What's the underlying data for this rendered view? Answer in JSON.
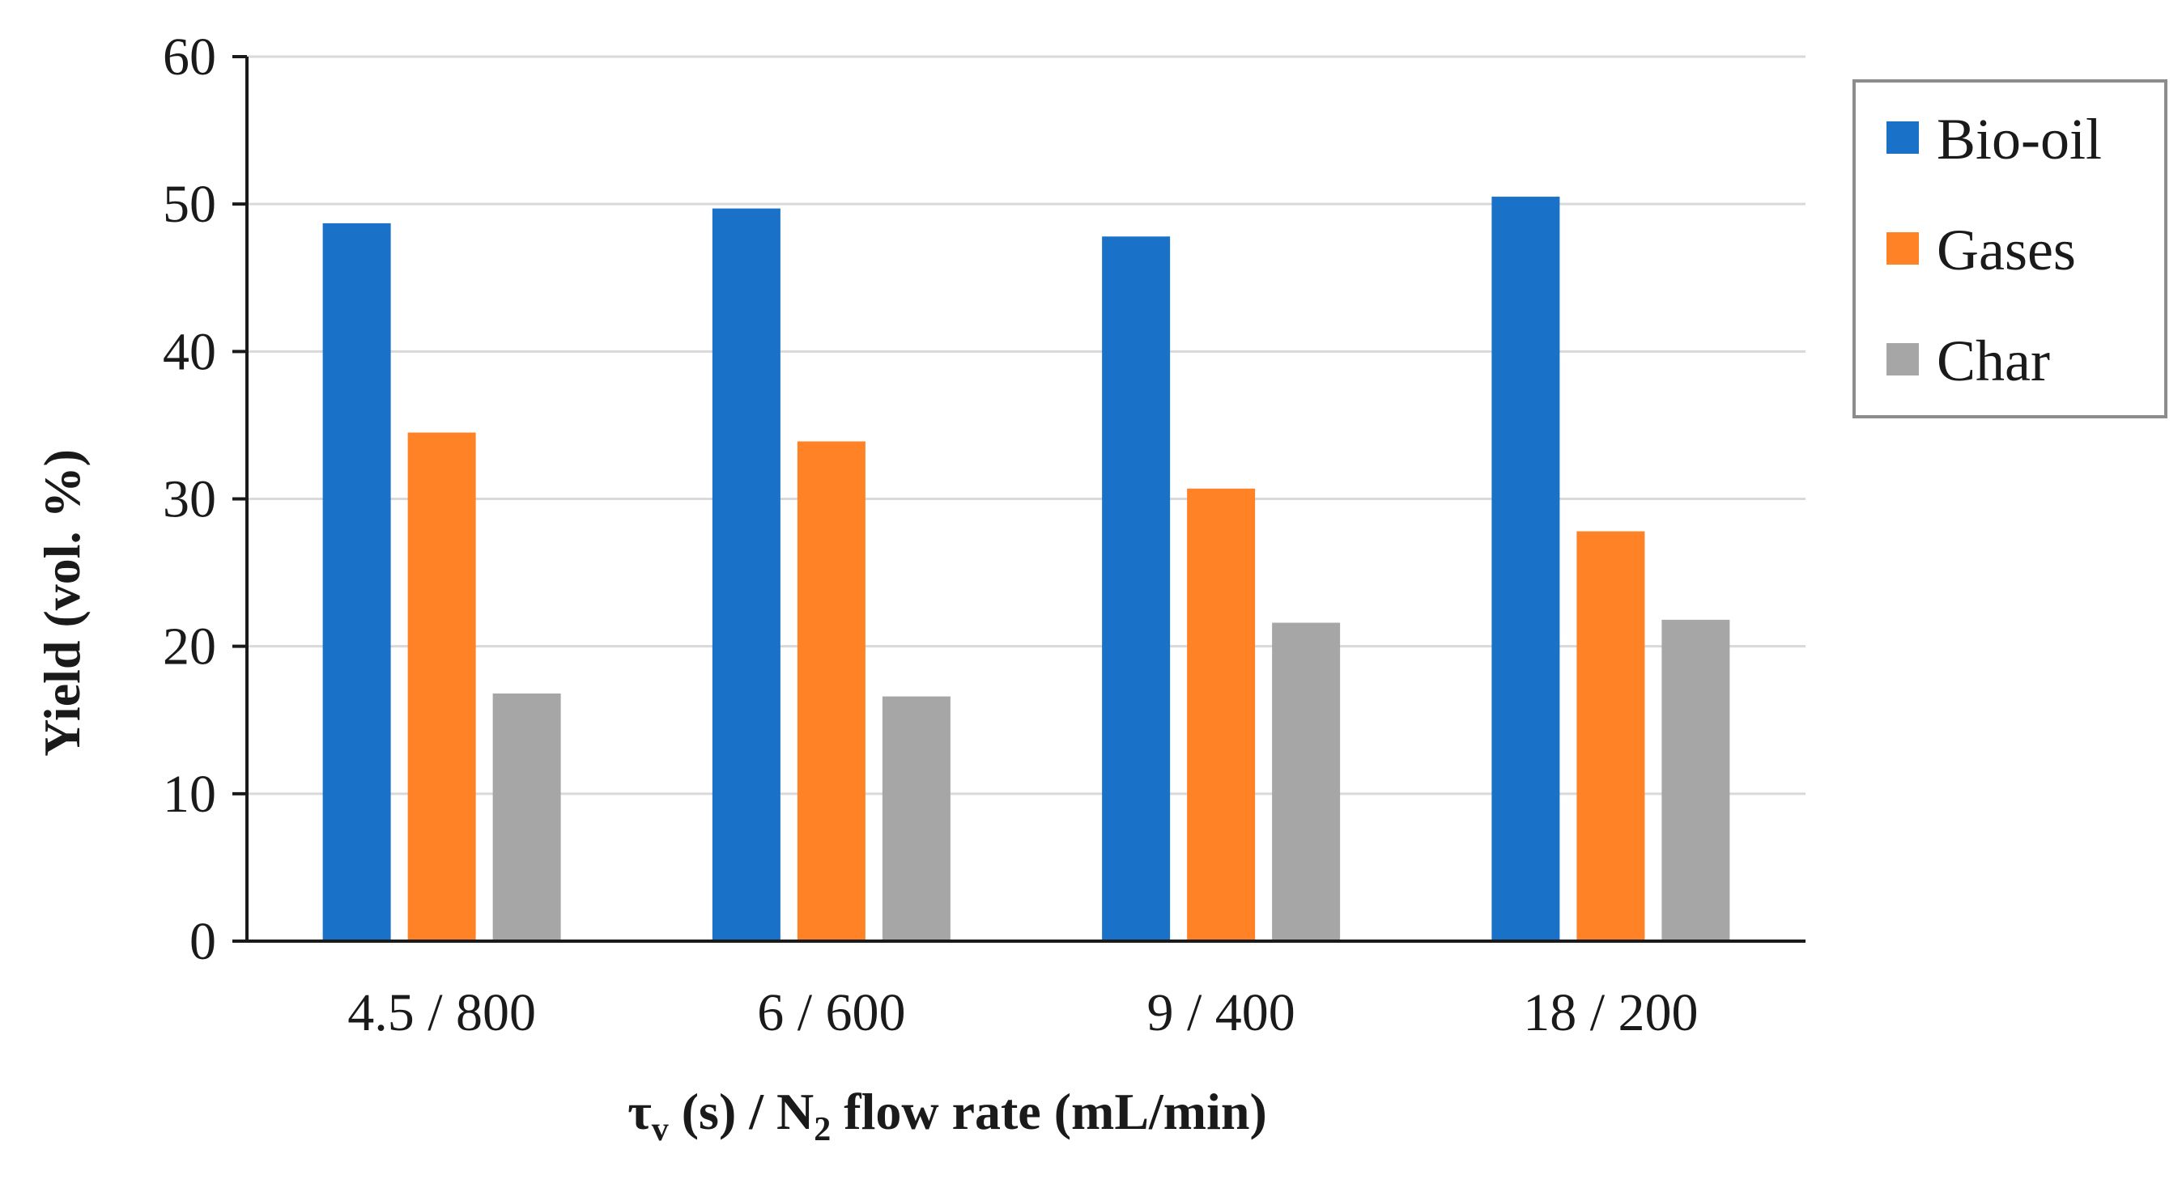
{
  "chart_data": {
    "type": "bar",
    "categories": [
      "4.5 / 800",
      "6 / 600",
      "9 / 400",
      "18 / 200"
    ],
    "series": [
      {
        "name": "Bio-oil",
        "color": "#1a72c8",
        "values": [
          48.7,
          49.7,
          47.8,
          50.5
        ]
      },
      {
        "name": "Gases",
        "color": "#ff8226",
        "values": [
          34.5,
          33.9,
          30.7,
          27.8
        ]
      },
      {
        "name": "Char",
        "color": "#a6a6a6",
        "values": [
          16.8,
          16.6,
          21.6,
          21.8
        ]
      }
    ],
    "ylabel": "Yield (vol. %)",
    "xlabel": {
      "tau": "τ",
      "tau_subscript": "v",
      "part1": " (s) / N",
      "n2_subscript": "2",
      "part2": " flow rate (mL/min)"
    },
    "ylim": [
      0,
      60
    ],
    "yticks": [
      0,
      10,
      20,
      30,
      40,
      50,
      60
    ],
    "grid": true,
    "legend_position": "top-right"
  }
}
